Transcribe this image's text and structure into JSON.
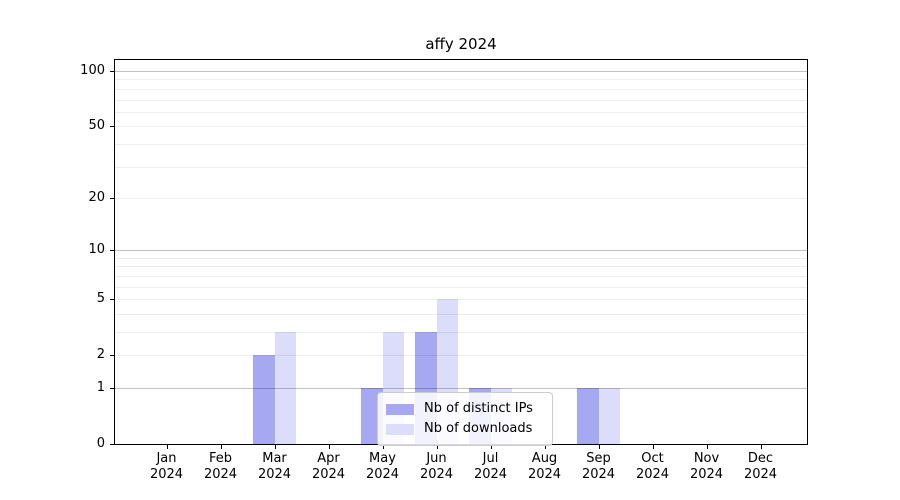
{
  "title": "affy 2024",
  "chart_data": {
    "type": "bar",
    "title": "affy 2024",
    "categories": [
      {
        "month": "Jan",
        "year": "2024"
      },
      {
        "month": "Feb",
        "year": "2024"
      },
      {
        "month": "Mar",
        "year": "2024"
      },
      {
        "month": "Apr",
        "year": "2024"
      },
      {
        "month": "May",
        "year": "2024"
      },
      {
        "month": "Jun",
        "year": "2024"
      },
      {
        "month": "Jul",
        "year": "2024"
      },
      {
        "month": "Aug",
        "year": "2024"
      },
      {
        "month": "Sep",
        "year": "2024"
      },
      {
        "month": "Oct",
        "year": "2024"
      },
      {
        "month": "Nov",
        "year": "2024"
      },
      {
        "month": "Dec",
        "year": "2024"
      }
    ],
    "series": [
      {
        "key": "distinct-ips",
        "name": "Nb of distinct IPs",
        "color": "#a6a8f2",
        "values": [
          0,
          0,
          2,
          0,
          1,
          3,
          1,
          0,
          1,
          0,
          0,
          0
        ]
      },
      {
        "key": "downloads",
        "name": "Nb of downloads",
        "color": "#dcddfa",
        "values": [
          0,
          0,
          3,
          0,
          3,
          5,
          1,
          0,
          1,
          0,
          0,
          0
        ]
      }
    ],
    "y_axis": {
      "scale": "log1p",
      "min": 0,
      "max": 100,
      "tick_values": [
        0,
        1,
        2,
        5,
        10,
        20,
        50,
        100
      ],
      "tick_labels": [
        "0",
        "1",
        "2",
        "5",
        "10",
        "20",
        "50",
        "100"
      ],
      "major_gridline_values": [
        1,
        10,
        100
      ],
      "minor_gridline_values": [
        2,
        3,
        4,
        5,
        6,
        7,
        8,
        9,
        20,
        30,
        40,
        50,
        60,
        70,
        80,
        90
      ]
    },
    "x_axis": {
      "grid": false
    },
    "legend": {
      "position": "lower center"
    }
  }
}
